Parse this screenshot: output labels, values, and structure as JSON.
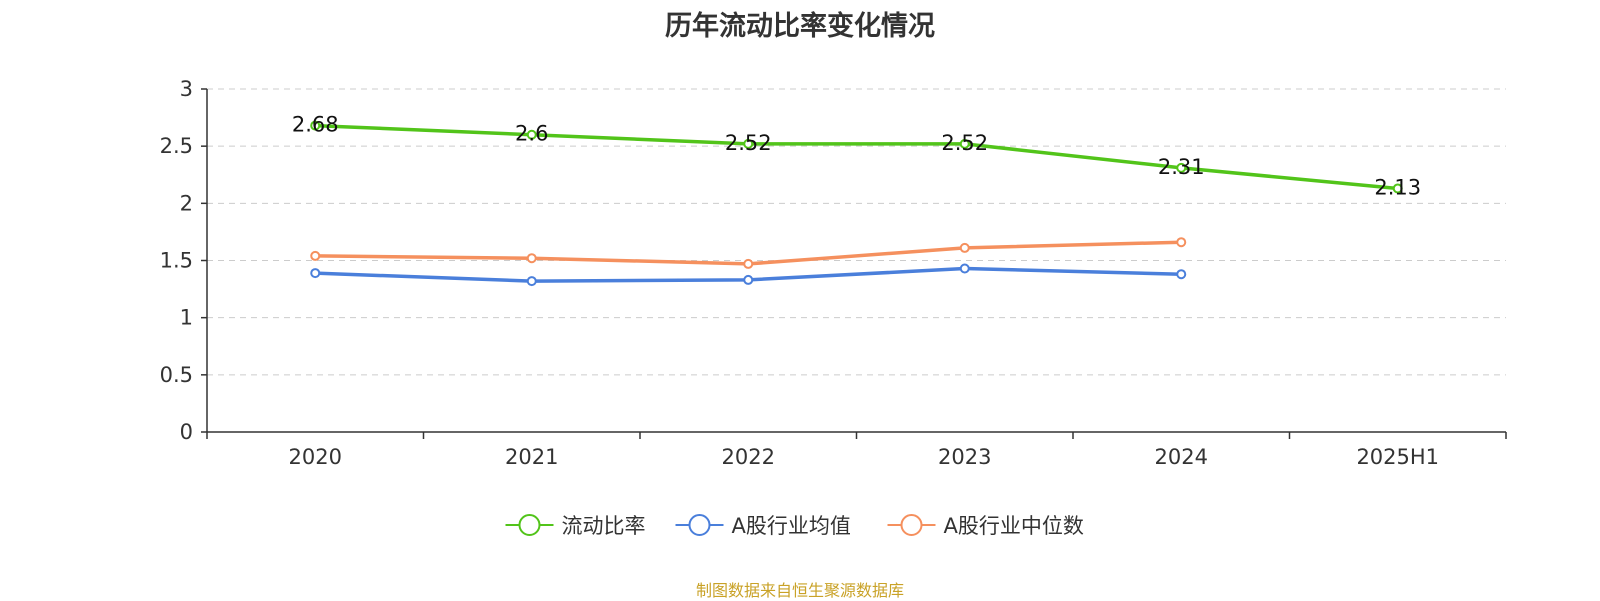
{
  "chart_data": {
    "type": "line",
    "title": "历年流动比率变化情况",
    "categories": [
      "2020",
      "2021",
      "2022",
      "2023",
      "2024",
      "2025H1"
    ],
    "ylim": [
      0,
      3
    ],
    "yticks": [
      "0",
      "0.5",
      "1",
      "1.5",
      "2",
      "2.5",
      "3"
    ],
    "grid": true,
    "legend_position": "bottom",
    "series": [
      {
        "name": "流动比率",
        "color": "#52c41a",
        "values": [
          2.68,
          2.6,
          2.52,
          2.52,
          2.31,
          2.13
        ],
        "labels": [
          "2.68",
          "2.6",
          "2.52",
          "2.52",
          "2.31",
          "2.13"
        ]
      },
      {
        "name": "A股行业均值",
        "color": "#4a7fdb",
        "values": [
          1.39,
          1.32,
          1.33,
          1.43,
          1.38,
          null
        ]
      },
      {
        "name": "A股行业中位数",
        "color": "#f5905e",
        "values": [
          1.54,
          1.52,
          1.47,
          1.61,
          1.66,
          null
        ]
      }
    ],
    "source": "制图数据来自恒生聚源数据库"
  }
}
